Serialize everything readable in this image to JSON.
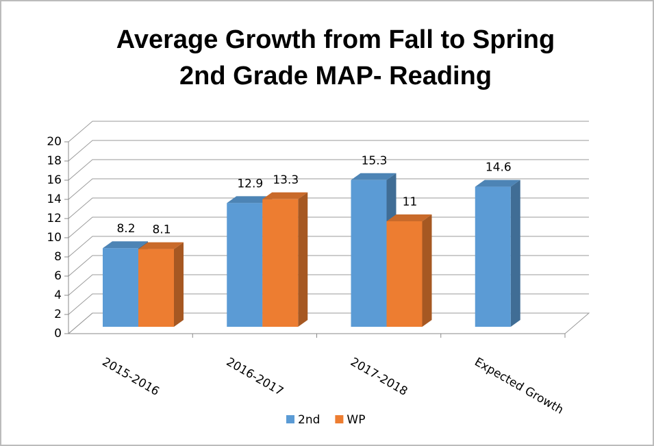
{
  "chart_data": {
    "type": "bar3d",
    "title": "Average Growth from Fall to Spring",
    "subtitle": "2nd Grade MAP- Reading",
    "categories": [
      "2015-2016",
      "2016-2017",
      "2017-2018",
      "Expected Growth"
    ],
    "series": [
      {
        "name": "2nd",
        "color": "#5b9bd5",
        "values": [
          8.2,
          12.9,
          15.3,
          14.6
        ]
      },
      {
        "name": "WP",
        "color": "#ed7d31",
        "values": [
          8.1,
          13.3,
          11,
          null
        ]
      }
    ],
    "ylim": [
      0,
      20
    ],
    "yticks": [
      0,
      2,
      4,
      6,
      8,
      10,
      12,
      14,
      16,
      18,
      20
    ],
    "grid": true,
    "legend": "bottom"
  }
}
